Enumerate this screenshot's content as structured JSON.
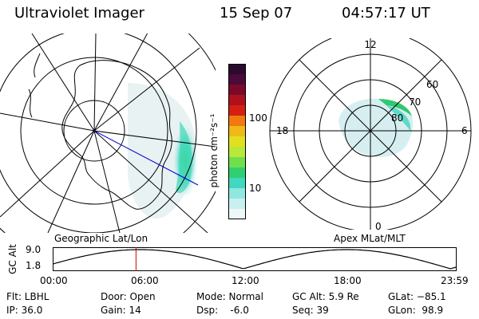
{
  "header": {
    "title": "Ultraviolet Imager",
    "date": "15 Sep 07",
    "time": "04:57:17 UT"
  },
  "colorbar": {
    "unit_label": "photon cm⁻²s⁻¹",
    "ticks": [
      "100",
      "10"
    ],
    "colors": [
      "#2a0a2e",
      "#4a0a3a",
      "#7a0a2a",
      "#b0101e",
      "#d42010",
      "#f07a10",
      "#f0b818",
      "#e0e020",
      "#b8e838",
      "#6ee04c",
      "#30d070",
      "#40d8c0",
      "#8ee8e0",
      "#c8f0f0",
      "#eef8f8"
    ]
  },
  "left_panel": {
    "caption": "Geographic Lat/Lon"
  },
  "right_panel": {
    "caption": "Apex MLat/MLT",
    "mlt_labels": {
      "top": "12",
      "left": "18",
      "right": "6",
      "bottom": "0"
    },
    "lat_labels": [
      "60",
      "70",
      "80"
    ]
  },
  "alt_plot": {
    "axis_label": "GC Alt",
    "y_ticks": [
      "9.0",
      "1.8"
    ],
    "x_ticks": [
      "00:00",
      "06:00",
      "12:00",
      "18:00",
      "23:59"
    ],
    "current_time_hours": 4.95,
    "marker_color": "#cc0000"
  },
  "footer": {
    "flt": "Flt: LBHL",
    "ip": "IP: 36.0",
    "door": "Door: Open",
    "gain": "Gain: 14",
    "mode": "Mode: Normal",
    "dsp": "Dsp:    -6.0",
    "gc_alt": "GC Alt: 5.9 Re",
    "seq": "Seq: 39",
    "glat": "GLat: −85.1",
    "glon": "GLon:  98.9"
  }
}
